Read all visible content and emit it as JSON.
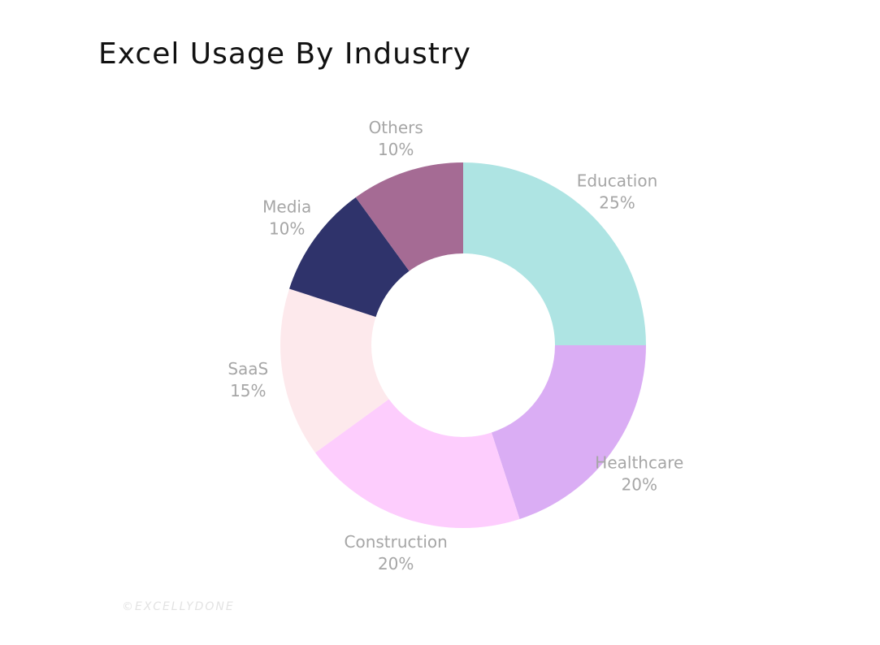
{
  "chart_data": {
    "type": "pie",
    "title": "Excel Usage By Industry",
    "donut": true,
    "labels_outside": true,
    "slices": [
      {
        "label": "Education",
        "value": 25,
        "value_label": "25%",
        "color": "#aee4e3"
      },
      {
        "label": "Healthcare",
        "value": 20,
        "value_label": "20%",
        "color": "#daadf4"
      },
      {
        "label": "Construction",
        "value": 20,
        "value_label": "20%",
        "color": "#fdcdfd"
      },
      {
        "label": "SaaS",
        "value": 15,
        "value_label": "15%",
        "color": "#fde9ec"
      },
      {
        "label": "Media",
        "value": 10,
        "value_label": "10%",
        "color": "#2f336b"
      },
      {
        "label": "Others",
        "value": 10,
        "value_label": "10%",
        "color": "#a56b94"
      }
    ],
    "label_color": "#a6a6a6"
  },
  "watermark": "©EXCELLYDONE"
}
